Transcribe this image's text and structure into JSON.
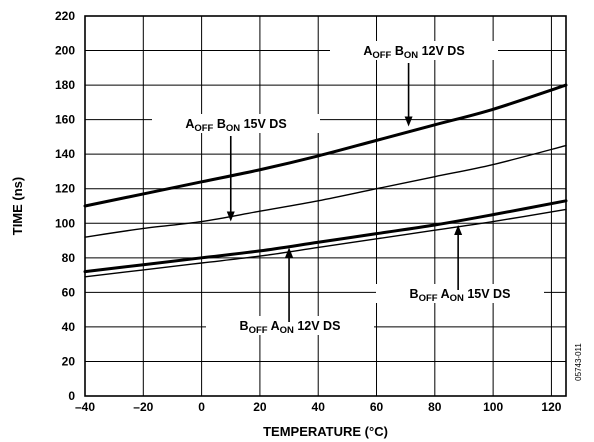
{
  "chart_data": {
    "type": "line",
    "xlabel": "TEMPERATURE (°C)",
    "ylabel": "TIME (ns)",
    "xlim": [
      -40,
      125
    ],
    "ylim": [
      0,
      220
    ],
    "x_ticks": [
      -40,
      -20,
      0,
      20,
      40,
      60,
      80,
      100,
      120
    ],
    "y_ticks": [
      0,
      20,
      40,
      60,
      80,
      100,
      120,
      140,
      160,
      180,
      200,
      220
    ],
    "x_tick_labels": [
      "–40",
      "–20",
      "0",
      "20",
      "40",
      "60",
      "80",
      "100",
      "120"
    ],
    "y_tick_labels": [
      "0",
      "20",
      "40",
      "60",
      "80",
      "100",
      "120",
      "140",
      "160",
      "180",
      "200",
      "220"
    ],
    "grid": true,
    "figure_id": "05743-011",
    "series": [
      {
        "name": "AOFF BON 12V DS",
        "thick": true,
        "x": [
          -40,
          -20,
          0,
          20,
          40,
          60,
          80,
          100,
          125
        ],
        "y": [
          110,
          117,
          124,
          131,
          139,
          148,
          157,
          166,
          180
        ]
      },
      {
        "name": "AOFF BON 15V DS",
        "thick": false,
        "x": [
          -40,
          -20,
          0,
          20,
          40,
          60,
          80,
          100,
          125
        ],
        "y": [
          92,
          97,
          101,
          107,
          113,
          120,
          127,
          134,
          145
        ]
      },
      {
        "name": "BOFF AON 12V DS",
        "thick": true,
        "x": [
          -40,
          -20,
          0,
          20,
          40,
          60,
          80,
          100,
          125
        ],
        "y": [
          72,
          76,
          80,
          84,
          89,
          94,
          99,
          105,
          113
        ]
      },
      {
        "name": "BOFF AON 15V DS",
        "thick": false,
        "x": [
          -40,
          -20,
          0,
          20,
          40,
          60,
          80,
          100,
          125
        ],
        "y": [
          69,
          73,
          77,
          81,
          86,
          91,
          96,
          101,
          108
        ]
      }
    ],
    "annotations": [
      {
        "series": 0,
        "main1": "A",
        "sub1": "OFF",
        "main2": " B",
        "sub2": "ON",
        "rest": " 12V DS",
        "arrow_to": [
          71,
          156
        ]
      },
      {
        "series": 1,
        "main1": "A",
        "sub1": "OFF",
        "main2": " B",
        "sub2": "ON",
        "rest": " 15V DS",
        "arrow_to": [
          10,
          101
        ]
      },
      {
        "series": 2,
        "main1": "B",
        "sub1": "OFF",
        "main2": " A",
        "sub2": "ON",
        "rest": " 12V DS",
        "arrow_to": [
          30,
          86
        ]
      },
      {
        "series": 3,
        "main1": "B",
        "sub1": "OFF",
        "main2": " A",
        "sub2": "ON",
        "rest": " 15V DS",
        "arrow_to": [
          88,
          99
        ]
      }
    ]
  }
}
